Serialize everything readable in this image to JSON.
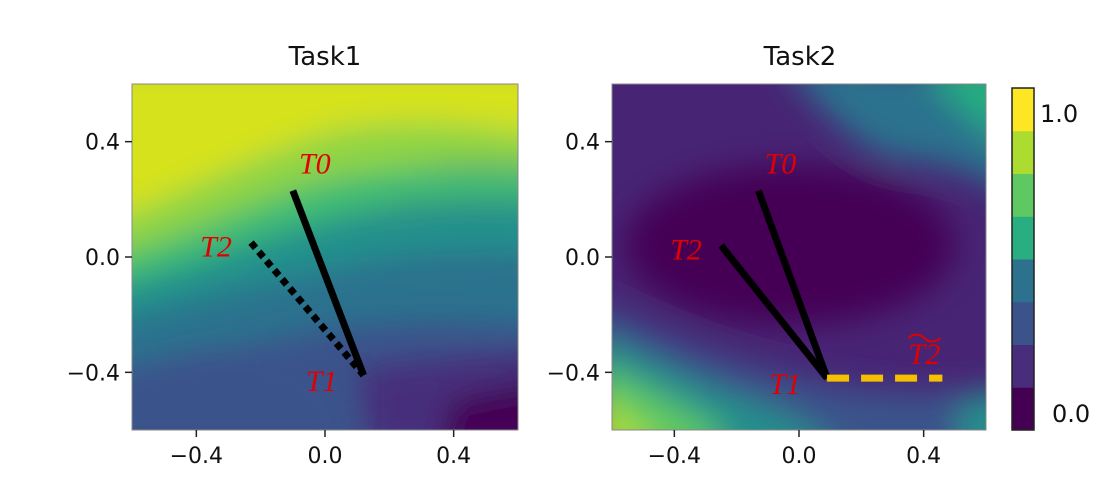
{
  "colors": {
    "annotation_text": "#e00000",
    "path_solid": "#000000",
    "path_dashed_task2": "#f5c000",
    "viridis": [
      "#440154",
      "#472d7b",
      "#3b528b",
      "#2c728e",
      "#21918c",
      "#28ae80",
      "#5ec962",
      "#addc30",
      "#fde725"
    ]
  },
  "chart_data": [
    {
      "type": "contour",
      "title": "Task1",
      "xlim": [
        -0.6,
        0.6
      ],
      "ylim": [
        -0.6,
        0.6
      ],
      "xticks": [
        -0.4,
        0.0,
        0.4
      ],
      "yticks": [
        -0.4,
        0.0,
        0.4
      ],
      "xtick_labels": [
        "−0.4",
        "0.0",
        "0.4"
      ],
      "ytick_labels": [
        "0.4",
        "0.0",
        "−0.4"
      ],
      "colormap": "viridis",
      "points": [
        {
          "label": "T0",
          "x": -0.1,
          "y": 0.23
        },
        {
          "label": "T1",
          "x": 0.12,
          "y": -0.41
        },
        {
          "label": "T2",
          "x": -0.23,
          "y": 0.05
        }
      ],
      "segments": [
        {
          "from": "T0",
          "to": "T1",
          "style": "solid"
        },
        {
          "from": "T2",
          "to": "T1",
          "style": "dotted"
        }
      ]
    },
    {
      "type": "contour",
      "title": "Task2",
      "xlim": [
        -0.6,
        0.6
      ],
      "ylim": [
        -0.6,
        0.6
      ],
      "xticks": [
        -0.4,
        0.0,
        0.4
      ],
      "yticks": [
        -0.4,
        0.0,
        0.4
      ],
      "xtick_labels": [
        "−0.4",
        "0.0",
        "0.4"
      ],
      "ytick_labels": [
        "0.4",
        "0.0",
        "−0.4"
      ],
      "colormap": "viridis",
      "points": [
        {
          "label": "T0",
          "x": -0.13,
          "y": 0.23
        },
        {
          "label": "T1",
          "x": 0.09,
          "y": -0.42
        },
        {
          "label": "T2",
          "x": -0.25,
          "y": 0.04
        },
        {
          "label": "T2",
          "tilde": true,
          "x": 0.46,
          "y": -0.42
        }
      ],
      "segments": [
        {
          "from": "T0",
          "to": "T1",
          "style": "solid"
        },
        {
          "from": "T2",
          "to": "T1",
          "style": "solid"
        },
        {
          "from": "T1",
          "to": "T2~",
          "style": "dashed"
        }
      ]
    }
  ],
  "colorbar": {
    "min": 0.0,
    "max": 1.0,
    "tick_labels": [
      "1.0",
      "0.0"
    ],
    "levels": 8
  }
}
